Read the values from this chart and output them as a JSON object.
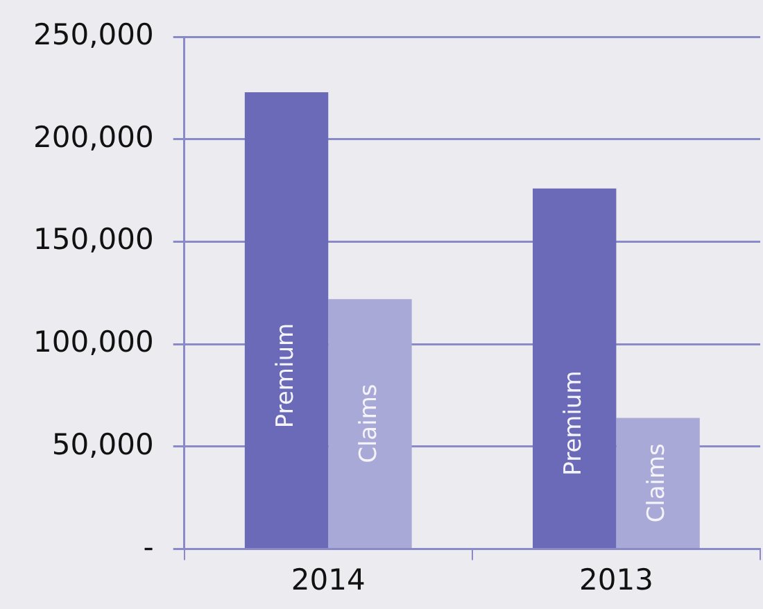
{
  "chart_data": {
    "type": "bar",
    "categories": [
      "2014",
      "2013"
    ],
    "series": [
      {
        "name": "Premium",
        "color": "#6a6ab8",
        "values": [
          223000,
          176000
        ]
      },
      {
        "name": "Claims",
        "color": "#a9a9d8",
        "values": [
          122000,
          64000
        ]
      }
    ],
    "ylim": [
      0,
      250000
    ],
    "yticks": [
      {
        "value": 0,
        "label": "-"
      },
      {
        "value": 50000,
        "label": "50,000"
      },
      {
        "value": 100000,
        "label": "100,000"
      },
      {
        "value": 150000,
        "label": "150,000"
      },
      {
        "value": 200000,
        "label": "200,000"
      },
      {
        "value": 250000,
        "label": "250,000"
      }
    ],
    "grid": "y",
    "legend": false
  }
}
